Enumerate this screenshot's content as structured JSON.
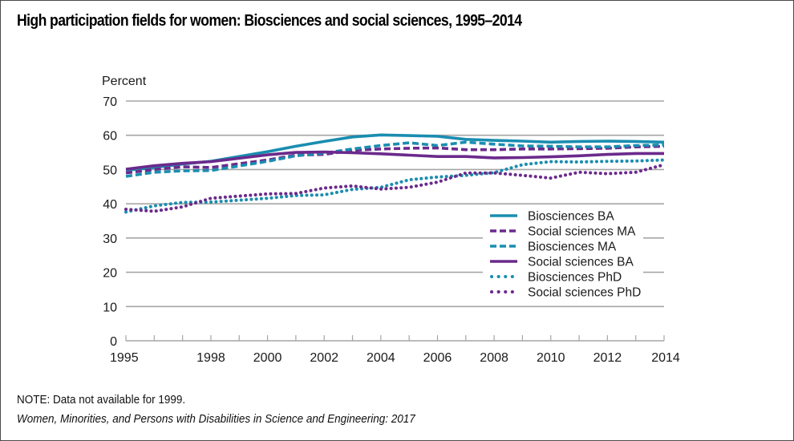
{
  "title": "High participation fields for women: Biosciences and social sciences, 1995–2014",
  "note": "NOTE: Data not available for 1999.",
  "source": "Women, Minorities, and Persons with Disabilities in Science and Engineering: 2017",
  "colors": {
    "teal": "#1a8db0",
    "purple": "#6b2a8c",
    "grid": "#a6a6a6"
  },
  "chart_data": {
    "type": "line",
    "title": "High participation fields for women: Biosciences and social sciences, 1995–2014",
    "xlabel": "",
    "ylabel": "Percent",
    "ylim": [
      0,
      70
    ],
    "xlim": [
      1995,
      2014
    ],
    "yticks": [
      0,
      10,
      20,
      30,
      40,
      50,
      60,
      70
    ],
    "xtick_labels": [
      "1995",
      "1998",
      "2000",
      "2002",
      "2004",
      "2006",
      "2008",
      "2010",
      "2012",
      "2014"
    ],
    "grid": true,
    "legend_position": "center-right",
    "x": [
      1995,
      1996,
      1997,
      1998,
      1999,
      2000,
      2001,
      2002,
      2003,
      2004,
      2005,
      2006,
      2007,
      2008,
      2009,
      2010,
      2011,
      2012,
      2013,
      2014
    ],
    "series": [
      {
        "name": "Biosciences BA",
        "color": "#1a8db0",
        "style": "solid",
        "values": [
          49.8,
          50.6,
          51.6,
          52.4,
          null,
          55.2,
          56.8,
          58.2,
          59.5,
          60.1,
          59.9,
          59.7,
          58.8,
          58.5,
          58.3,
          58.0,
          58.2,
          58.3,
          58.2,
          58.0
        ]
      },
      {
        "name": "Social sciences MA",
        "color": "#6b2a8c",
        "style": "dashed",
        "values": [
          49.0,
          50.0,
          50.8,
          50.6,
          null,
          52.8,
          54.2,
          54.4,
          55.6,
          56.0,
          56.2,
          56.3,
          55.8,
          55.8,
          56.0,
          56.0,
          56.1,
          56.2,
          56.6,
          56.8
        ]
      },
      {
        "name": "Biosciences MA",
        "color": "#1a8db0",
        "style": "dashed",
        "values": [
          48.0,
          49.2,
          49.6,
          49.7,
          null,
          52.4,
          54.0,
          54.8,
          56.0,
          57.0,
          57.8,
          57.0,
          58.0,
          57.4,
          56.9,
          56.8,
          56.6,
          56.6,
          57.0,
          57.2
        ]
      },
      {
        "name": "Social sciences BA",
        "color": "#6b2a8c",
        "style": "solid",
        "values": [
          50.1,
          51.1,
          51.8,
          52.3,
          null,
          54.3,
          55.0,
          55.1,
          54.9,
          54.6,
          54.2,
          53.8,
          53.8,
          53.4,
          53.5,
          53.7,
          54.0,
          54.4,
          54.7,
          54.7
        ]
      },
      {
        "name": "Biosciences PhD",
        "color": "#1a8db0",
        "style": "dotted",
        "values": [
          37.6,
          39.4,
          40.4,
          40.5,
          null,
          41.6,
          42.4,
          42.6,
          44.2,
          44.8,
          47.0,
          47.8,
          48.3,
          49.1,
          51.4,
          52.3,
          52.2,
          52.4,
          52.5,
          52.8
        ]
      },
      {
        "name": "Social sciences PhD",
        "color": "#6b2a8c",
        "style": "dotted",
        "values": [
          38.4,
          37.8,
          39.1,
          41.6,
          null,
          42.9,
          43.0,
          44.6,
          45.2,
          44.3,
          44.8,
          46.3,
          49.0,
          49.0,
          48.3,
          47.5,
          49.2,
          48.8,
          49.2,
          51.4
        ]
      }
    ]
  }
}
